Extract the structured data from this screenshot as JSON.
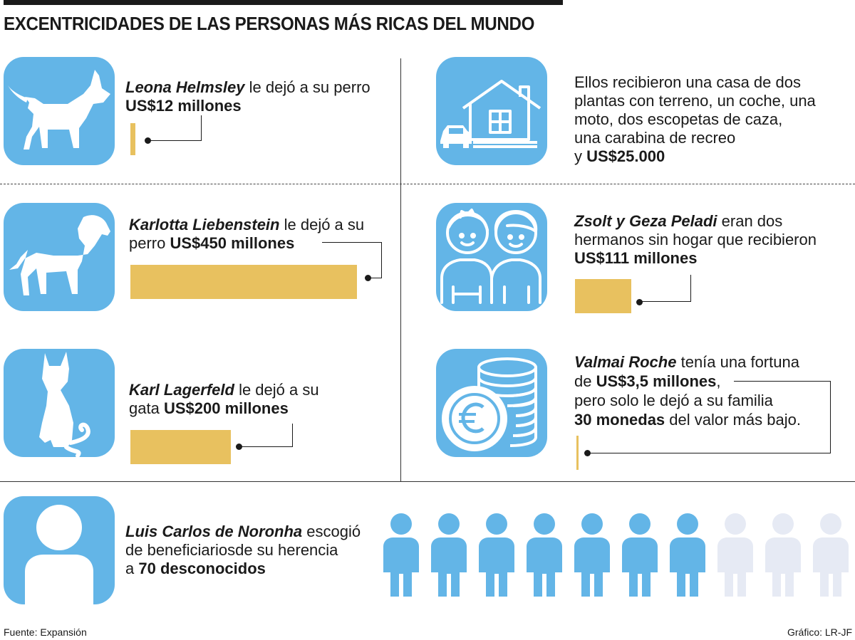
{
  "header": {
    "title": "EXCENTRICIDADES DE LAS PERSONAS MÁS RICAS DEL MUNDO"
  },
  "items": {
    "helmsley": {
      "icon": "dog-icon",
      "name": "Leona Helmsley",
      "text1": "le dejó a su perro",
      "amount": "US$12 millones",
      "value_millions": 12
    },
    "liebenstein": {
      "icon": "dog-icon",
      "name": "Karlotta Liebenstein",
      "text1": "le dejó a su",
      "text2": "perro",
      "amount": "US$450 millones",
      "value_millions": 450
    },
    "lagerfeld": {
      "icon": "cat-icon",
      "name": "Karl Lagerfeld",
      "text1": "le dejó a su",
      "text2": "gata",
      "amount": "US$200 millones",
      "value_millions": 200
    },
    "house": {
      "icon": "house-car-icon",
      "line1": "Ellos recibieron una casa de dos",
      "line2": "plantas con terreno, un coche, una",
      "line3": "moto, dos escopetas de caza,",
      "line4": "una carabina de recreo",
      "line5_pre": "y",
      "amount": "US$25.000"
    },
    "peladi": {
      "icon": "brothers-icon",
      "name": "Zsolt y Geza Peladi",
      "text1": "eran dos",
      "line2": "hermanos sin hogar que recibieron",
      "amount": "US$111 millones",
      "value_millions": 111
    },
    "roche": {
      "icon": "coins-euro-icon",
      "name": "Valmai Roche",
      "text1": "tenía una fortuna",
      "line2_pre": "de",
      "amount": "US$3,5 millones",
      "line2_post": ",",
      "line3": "pero solo le dejó a su familia",
      "coins": "30 monedas",
      "line4_post": "del valor más bajo.",
      "value_millions": 3.5
    },
    "noronha": {
      "icon": "person-icon",
      "name": "Luis Carlos de Noronha",
      "text1": "escogió",
      "line2": "de beneficiariosde su herencia",
      "line3_pre": "a",
      "amount": "70 desconocidos",
      "people_filled": 7,
      "people_total": 10
    }
  },
  "colors": {
    "accent_blue": "#63b5e7",
    "bar_gold": "#e8c15f",
    "faded_person": "#e6eaf4"
  },
  "footer": {
    "source": "Fuente: Expansión",
    "credit": "Gráfico: LR-JF"
  }
}
